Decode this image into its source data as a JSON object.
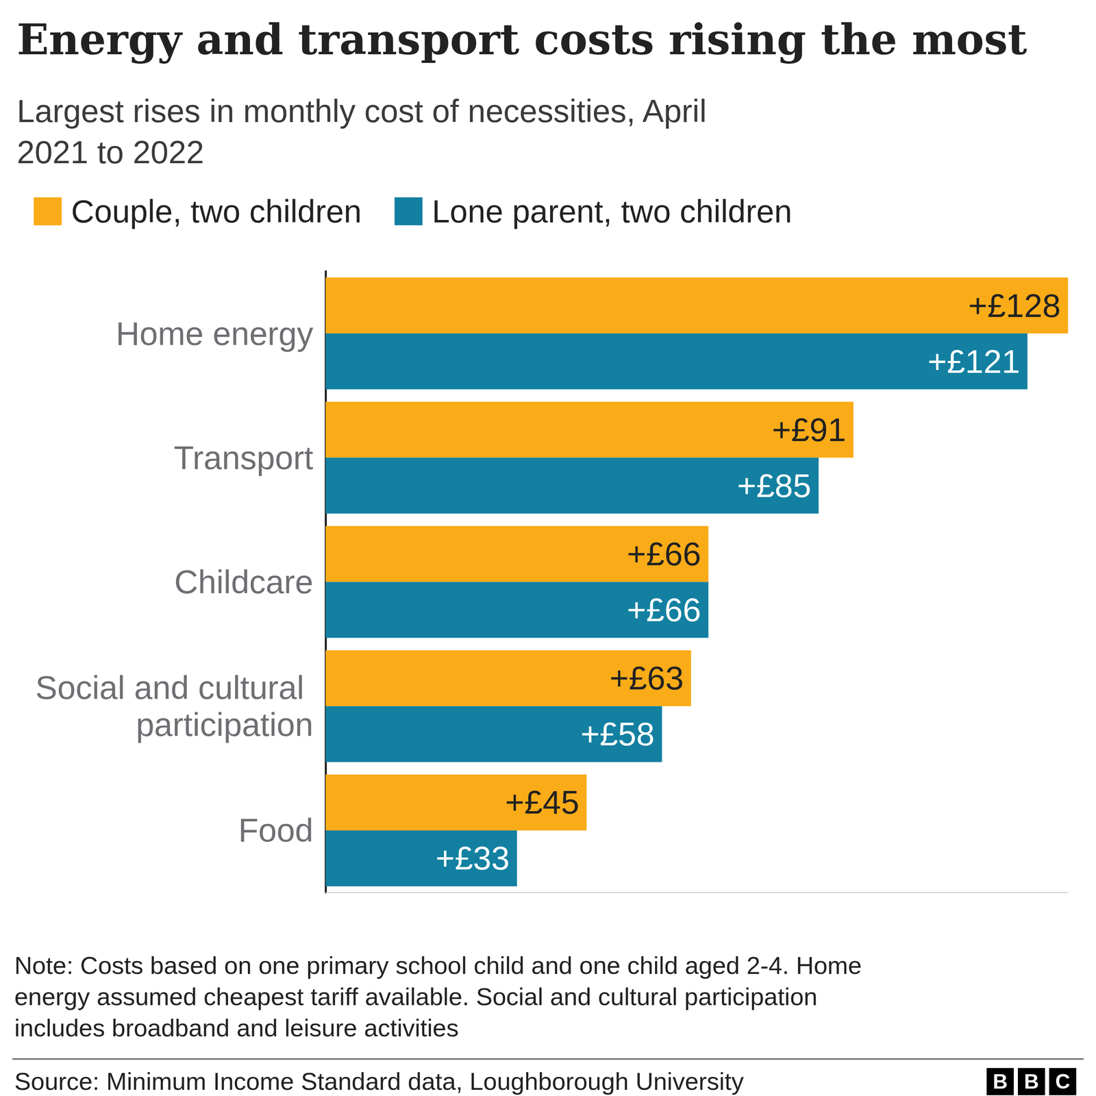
{
  "chart_data": {
    "type": "bar",
    "title": "Energy and transport costs rising the most",
    "subtitle": "Largest rises in monthly cost of necessities, April 2021 to 2022",
    "note": "Note: Costs based on one primary school child and one child aged 2-4. Home energy assumed cheapest tariff available. Social and cultural participation includes broadband and leisure activities",
    "source": "Source: Minimum Income Standard data, Loughborough University",
    "logo": "BBC",
    "orientation": "horizontal",
    "categories": [
      "Home energy",
      "Transport",
      "Childcare",
      "Social and cultural participation",
      "Food"
    ],
    "series": [
      {
        "name": "Couple, two children",
        "color": "#faab18",
        "values": [
          128,
          91,
          66,
          63,
          45
        ],
        "value_labels": [
          "+£128",
          "+£91",
          "+£66",
          "+£63",
          "+£45"
        ]
      },
      {
        "name": "Lone parent, two children",
        "color": "#1380a1",
        "values": [
          121,
          85,
          66,
          58,
          33
        ],
        "value_labels": [
          "+£121",
          "+£85",
          "+£66",
          "+£58",
          "+£33"
        ]
      }
    ],
    "xlim": [
      0,
      128
    ],
    "xticks": [],
    "grid": false,
    "data_labels": true,
    "tick_labels": "y",
    "legend": "top-left"
  }
}
